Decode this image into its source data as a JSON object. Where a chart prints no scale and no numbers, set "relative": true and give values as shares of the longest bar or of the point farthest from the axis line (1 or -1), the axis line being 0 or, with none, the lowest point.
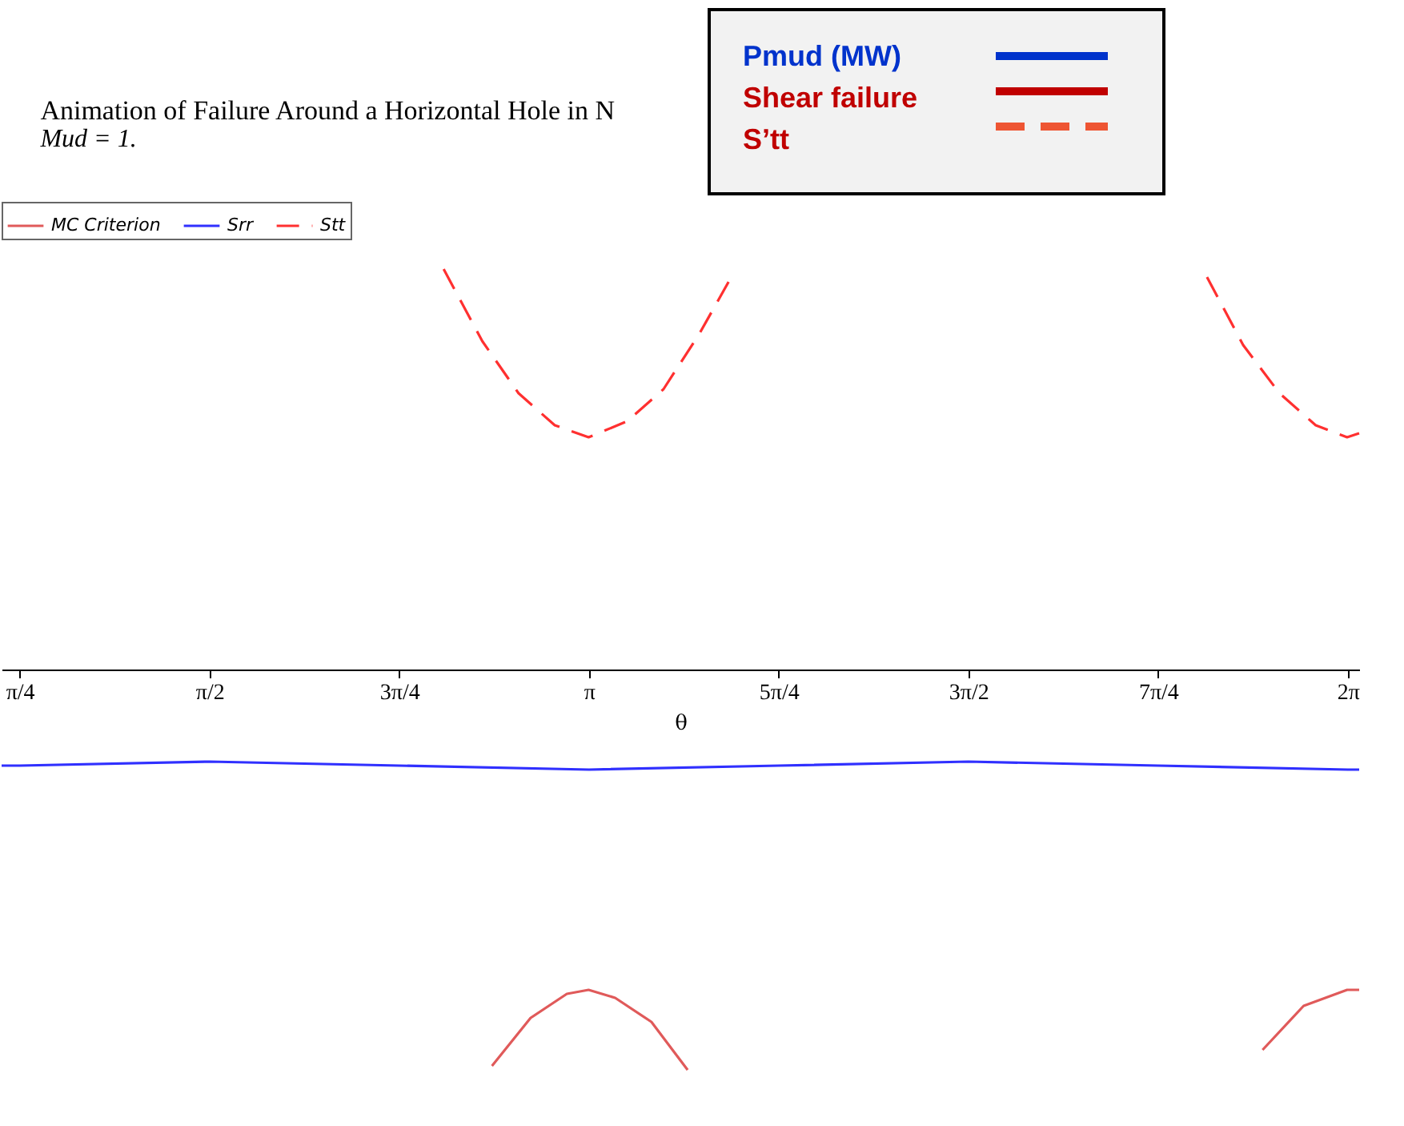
{
  "chart_data": {
    "type": "line",
    "title": "Animation of Failure Around a Horizontal Hole in N",
    "subtitle": "Mud = 1.",
    "xlabel": "θ",
    "relative": true,
    "legend": "top",
    "grid": false,
    "xlim": [
      0.71,
      6.33
    ],
    "xticks": [
      {
        "value": 0.785,
        "label": "π/4"
      },
      {
        "value": 1.571,
        "label": "π/2"
      },
      {
        "value": 2.356,
        "label": "3π/4"
      },
      {
        "value": 3.142,
        "label": "π"
      },
      {
        "value": 3.927,
        "label": "5π/4"
      },
      {
        "value": 4.712,
        "label": "3π/2"
      },
      {
        "value": 5.498,
        "label": "7π/4"
      },
      {
        "value": 6.283,
        "label": "2π"
      }
    ],
    "series": [
      {
        "name": "MC Criterion",
        "color": "#e05a5a",
        "line_style": "solid",
        "x": [
          2.74,
          2.9,
          3.05,
          3.14,
          3.25,
          3.4,
          3.55,
          4.5,
          5.93,
          6.1,
          6.28,
          6.33
        ],
        "values": [
          -0.99,
          -0.87,
          -0.81,
          -0.8,
          -0.82,
          -0.88,
          -1.0,
          null,
          -0.95,
          -0.84,
          -0.8,
          -0.8
        ]
      },
      {
        "name": "Srr",
        "color": "#3030ff",
        "line_style": "solid",
        "x": [
          0.71,
          0.785,
          1.571,
          2.356,
          3.142,
          3.927,
          4.712,
          5.498,
          6.283,
          6.33
        ],
        "values": [
          -0.24,
          -0.24,
          -0.23,
          -0.24,
          -0.25,
          -0.24,
          -0.23,
          -0.24,
          -0.25,
          -0.25
        ]
      },
      {
        "name": "Stt",
        "color": "#ff3030",
        "line_style": "dashed",
        "x": [
          2.54,
          2.7,
          2.85,
          3.0,
          3.14,
          3.3,
          3.45,
          3.6,
          3.74,
          4.5,
          5.7,
          5.85,
          6.0,
          6.15,
          6.28,
          6.33
        ],
        "values": [
          1.0,
          0.82,
          0.69,
          0.61,
          0.58,
          0.62,
          0.7,
          0.84,
          0.99,
          null,
          0.98,
          0.81,
          0.69,
          0.61,
          0.58,
          0.59
        ]
      }
    ],
    "annotations": [
      "Pmud (MW)",
      "Shear failure",
      "S’tt"
    ]
  }
}
